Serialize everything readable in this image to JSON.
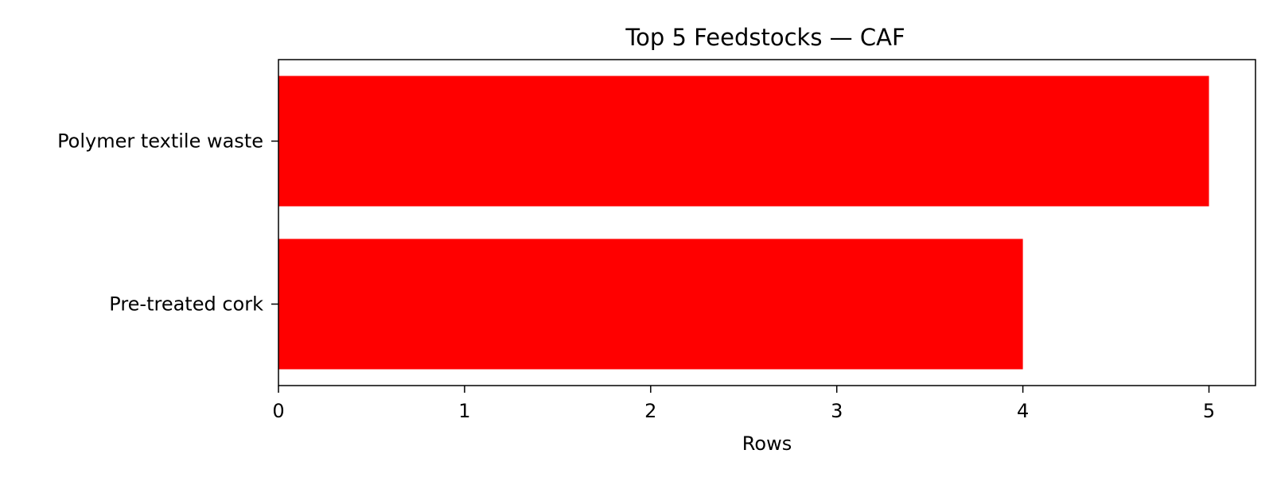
{
  "chart_data": {
    "type": "bar",
    "orientation": "horizontal",
    "title": "Top 5 Feedstocks — CAF",
    "xlabel": "Rows",
    "ylabel": "",
    "categories": [
      "Polymer textile waste",
      "Pre-treated cork"
    ],
    "values": [
      5,
      4
    ],
    "xlim": [
      0,
      5.25
    ],
    "xticks": [
      0,
      1,
      2,
      3,
      4,
      5
    ],
    "grid": false,
    "legend": "none",
    "bar_color": "#ff0000"
  }
}
